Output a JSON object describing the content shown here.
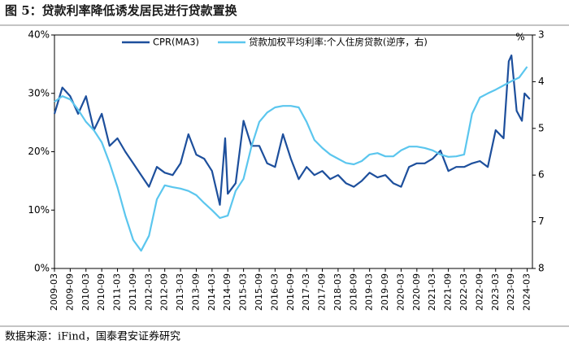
{
  "chart_data": {
    "type": "line",
    "title": "图 5：贷款利率降低诱发居民进行贷款置换",
    "source": "数据来源：iFind，国泰君安证券研究",
    "y2label": "%",
    "xlim": [
      "2009-03",
      "2024-05"
    ],
    "xticks": [
      "2009-03",
      "2009-09",
      "2010-03",
      "2010-09",
      "2011-03",
      "2011-09",
      "2012-03",
      "2012-09",
      "2013-03",
      "2013-09",
      "2014-03",
      "2014-09",
      "2015-03",
      "2015-09",
      "2016-03",
      "2016-09",
      "2017-03",
      "2017-09",
      "2018-03",
      "2018-09",
      "2019-03",
      "2019-09",
      "2020-03",
      "2020-09",
      "2021-03",
      "2021-09",
      "2022-03",
      "2022-09",
      "2023-03",
      "2023-09",
      "2024-03"
    ],
    "ylim": [
      0,
      40
    ],
    "yticks": [
      {
        "value": 0,
        "label": "0%"
      },
      {
        "value": 10,
        "label": "10%"
      },
      {
        "value": 20,
        "label": "20%"
      },
      {
        "value": 30,
        "label": "30%"
      },
      {
        "value": 40,
        "label": "40%"
      }
    ],
    "y2lim": [
      8,
      3
    ],
    "y2ticks": [
      3,
      4,
      5,
      6,
      7,
      8
    ],
    "series": [
      {
        "name": "CPR(MA3)",
        "color": "#1d4f9c",
        "x": [
          "2009-03",
          "2009-06",
          "2009-09",
          "2009-12",
          "2010-03",
          "2010-06",
          "2010-09",
          "2010-12",
          "2011-03",
          "2011-06",
          "2011-09",
          "2011-12",
          "2012-03",
          "2012-06",
          "2012-09",
          "2012-12",
          "2013-03",
          "2013-06",
          "2013-09",
          "2013-12",
          "2014-03",
          "2014-06",
          "2014-08",
          "2014-09",
          "2014-12",
          "2015-03",
          "2015-06",
          "2015-09",
          "2015-12",
          "2016-03",
          "2016-06",
          "2016-09",
          "2016-12",
          "2017-03",
          "2017-06",
          "2017-09",
          "2017-12",
          "2018-03",
          "2018-06",
          "2018-09",
          "2018-12",
          "2019-03",
          "2019-06",
          "2019-09",
          "2019-12",
          "2020-03",
          "2020-06",
          "2020-09",
          "2020-12",
          "2021-03",
          "2021-06",
          "2021-09",
          "2021-12",
          "2022-03",
          "2022-06",
          "2022-09",
          "2022-12",
          "2023-03",
          "2023-06",
          "2023-08",
          "2023-09",
          "2023-11",
          "2024-01",
          "2024-02",
          "2024-04"
        ],
        "values": [
          26.5,
          31,
          29.5,
          26.5,
          29.5,
          23.7,
          26.5,
          21,
          22.3,
          20,
          18,
          16,
          14,
          17.4,
          16.4,
          16,
          18,
          23,
          19.5,
          18.8,
          16.7,
          10.9,
          22.3,
          12.8,
          14.6,
          25.3,
          21,
          21,
          18,
          17.4,
          23,
          18.8,
          15.3,
          17.4,
          16,
          16.7,
          15.3,
          16,
          14.6,
          14,
          15,
          16.4,
          15.6,
          16,
          14.6,
          14,
          17.4,
          18,
          18,
          18.8,
          20.2,
          16.7,
          17.4,
          17.4,
          18,
          18.4,
          17.4,
          23.7,
          22.3,
          35.5,
          36.5,
          27,
          25.3,
          30,
          29
        ]
      },
      {
        "name": "贷款加权平均利率:个人住房贷款(逆序，右)",
        "color": "#5bc6ee",
        "axis": "y2",
        "x": [
          "2009-03",
          "2009-06",
          "2009-09",
          "2009-12",
          "2010-03",
          "2010-06",
          "2010-09",
          "2010-12",
          "2011-03",
          "2011-06",
          "2011-09",
          "2011-12",
          "2012-03",
          "2012-06",
          "2012-09",
          "2012-12",
          "2013-03",
          "2013-06",
          "2013-09",
          "2013-12",
          "2014-03",
          "2014-06",
          "2014-09",
          "2014-12",
          "2015-03",
          "2015-06",
          "2015-09",
          "2015-12",
          "2016-03",
          "2016-06",
          "2016-09",
          "2016-12",
          "2017-03",
          "2017-06",
          "2017-09",
          "2017-12",
          "2018-03",
          "2018-06",
          "2018-09",
          "2018-12",
          "2019-03",
          "2019-06",
          "2019-09",
          "2019-12",
          "2020-03",
          "2020-06",
          "2020-09",
          "2020-12",
          "2021-03",
          "2021-06",
          "2021-09",
          "2021-12",
          "2022-03",
          "2022-06",
          "2022-09",
          "2022-12",
          "2023-03",
          "2023-06",
          "2023-09",
          "2023-12",
          "2024-03"
        ],
        "values": [
          4.43,
          4.31,
          4.38,
          4.6,
          4.86,
          5.04,
          5.3,
          5.74,
          6.26,
          6.87,
          7.39,
          7.62,
          7.3,
          6.52,
          6.22,
          6.26,
          6.29,
          6.34,
          6.43,
          6.6,
          6.75,
          6.92,
          6.87,
          6.34,
          6.08,
          5.39,
          4.86,
          4.66,
          4.55,
          4.52,
          4.52,
          4.55,
          4.86,
          5.25,
          5.42,
          5.56,
          5.65,
          5.74,
          5.77,
          5.7,
          5.56,
          5.53,
          5.6,
          5.6,
          5.47,
          5.39,
          5.39,
          5.42,
          5.47,
          5.56,
          5.61,
          5.6,
          5.56,
          4.69,
          4.34,
          4.25,
          4.17,
          4.08,
          3.99,
          3.91,
          3.68
        ]
      }
    ]
  }
}
